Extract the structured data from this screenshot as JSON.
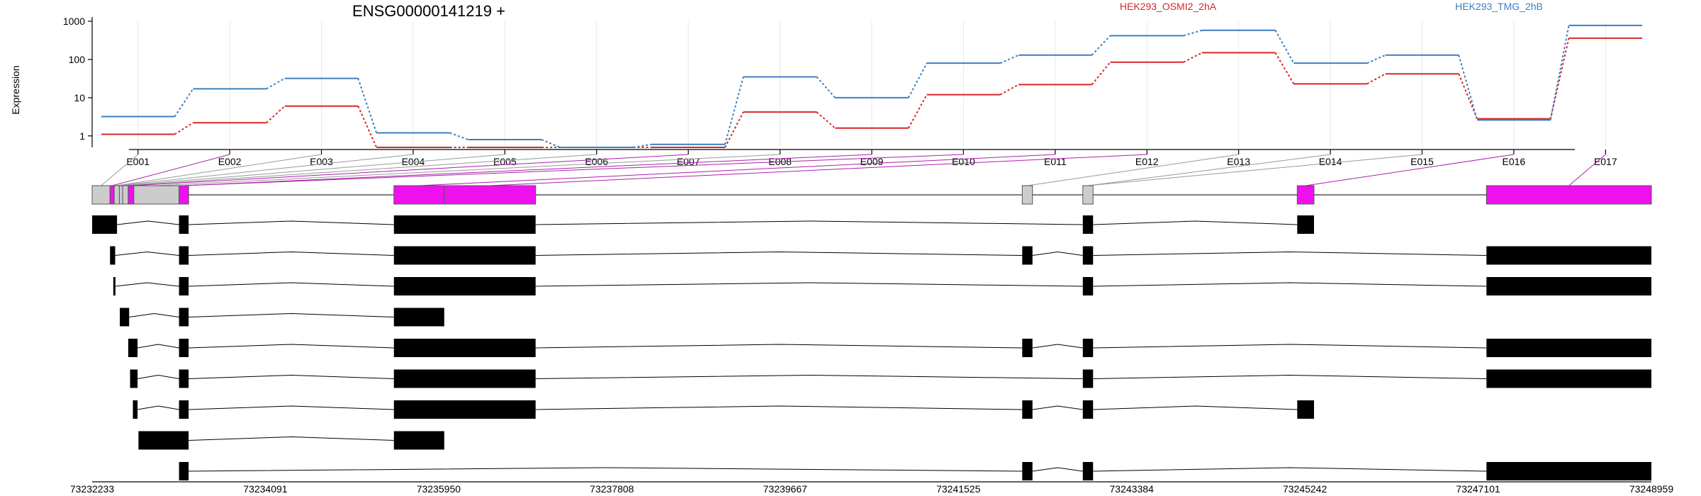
{
  "chart_data": [
    {
      "type": "line",
      "title": "ENSG00000141219 +",
      "ylabel": "Expression",
      "yscale": "log",
      "yticks": [
        "1",
        "10",
        "100",
        "1000"
      ],
      "ylim": [
        0.5,
        1000
      ],
      "categories": [
        "E001",
        "E002",
        "E003",
        "E004",
        "E005",
        "E006",
        "E007",
        "E008",
        "E009",
        "E010",
        "E011",
        "E012",
        "E013",
        "E014",
        "E015",
        "E016",
        "E017"
      ],
      "legend_placement": "top",
      "grid": "vertical",
      "series": [
        {
          "name": "HEK293_OSMI2_2hA",
          "color": "#d62728",
          "values": [
            1.1,
            2.2,
            6.0,
            0.5,
            0.5,
            0.5,
            0.5,
            4.2,
            1.6,
            12,
            22,
            85,
            150,
            23,
            42,
            2.8,
            360
          ]
        },
        {
          "name": "HEK293_TMG_2hB",
          "color": "#3a7fc0",
          "values": [
            3.2,
            17,
            32,
            1.2,
            0.8,
            0.5,
            0.6,
            35,
            10,
            80,
            130,
            420,
            580,
            80,
            130,
            2.6,
            780
          ]
        }
      ]
    },
    {
      "type": "gene_structure",
      "xlabels": [
        "73232233",
        "73234091",
        "73235950",
        "73237808",
        "73239667",
        "73241525",
        "73243384",
        "73245242",
        "73247101",
        "73248959"
      ],
      "xlim": [
        73232233,
        73248959
      ],
      "colors": {
        "highlight": "#ee11ee",
        "other": "#cccccc",
        "transcript": "#000000"
      },
      "exon_map": [
        [
          73232233,
          73232425,
          "other"
        ],
        [
          73232425,
          73232470,
          "highlight"
        ],
        [
          73232470,
          73232525,
          "other"
        ],
        [
          73232525,
          73232560,
          "other"
        ],
        [
          73232560,
          73232620,
          "other"
        ],
        [
          73232620,
          73232680,
          "highlight"
        ],
        [
          73232680,
          73233165,
          "other"
        ],
        [
          73233165,
          73233268,
          "highlight"
        ],
        [
          73235470,
          73236010,
          "highlight"
        ],
        [
          73236010,
          73236990,
          "highlight"
        ],
        [
          73242210,
          73242320,
          "other"
        ],
        [
          73242860,
          73242970,
          "other"
        ],
        [
          73245160,
          73245340,
          "highlight"
        ],
        [
          73247190,
          73248959,
          "highlight"
        ]
      ],
      "transcripts": [
        [
          [
            73232233,
            73232500
          ],
          [
            73233165,
            73233268
          ],
          [
            73235470,
            73236990
          ],
          [
            73242860,
            73242970
          ],
          [
            73245160,
            73245340
          ]
        ],
        [
          [
            73232425,
            73232480
          ],
          [
            73233165,
            73233268
          ],
          [
            73235470,
            73236990
          ],
          [
            73242210,
            73242320
          ],
          [
            73242860,
            73242970
          ],
          [
            73247190,
            73248959
          ]
        ],
        [
          [
            73232460,
            73232480
          ],
          [
            73233165,
            73233268
          ],
          [
            73235470,
            73236990
          ],
          [
            73242860,
            73242970
          ],
          [
            73247190,
            73248959
          ]
        ],
        [
          [
            73232530,
            73232630
          ],
          [
            73233165,
            73233268
          ],
          [
            73235470,
            73236010
          ]
        ],
        [
          [
            73232620,
            73232720
          ],
          [
            73233165,
            73233268
          ],
          [
            73235470,
            73236990
          ],
          [
            73242210,
            73242320
          ],
          [
            73242860,
            73242970
          ],
          [
            73247190,
            73248959
          ]
        ],
        [
          [
            73232640,
            73232720
          ],
          [
            73233165,
            73233268
          ],
          [
            73235470,
            73236990
          ],
          [
            73242860,
            73242970
          ],
          [
            73247190,
            73248959
          ]
        ],
        [
          [
            73232670,
            73232720
          ],
          [
            73233165,
            73233268
          ],
          [
            73235470,
            73236990
          ],
          [
            73242210,
            73242320
          ],
          [
            73242860,
            73242970
          ],
          [
            73245160,
            73245340
          ]
        ],
        [
          [
            73232730,
            73233268
          ],
          [
            73235470,
            73236010
          ]
        ],
        [
          [
            73233165,
            73233268
          ],
          [
            73242210,
            73242320
          ],
          [
            73242860,
            73242970
          ],
          [
            73247190,
            73248959
          ]
        ]
      ]
    }
  ]
}
